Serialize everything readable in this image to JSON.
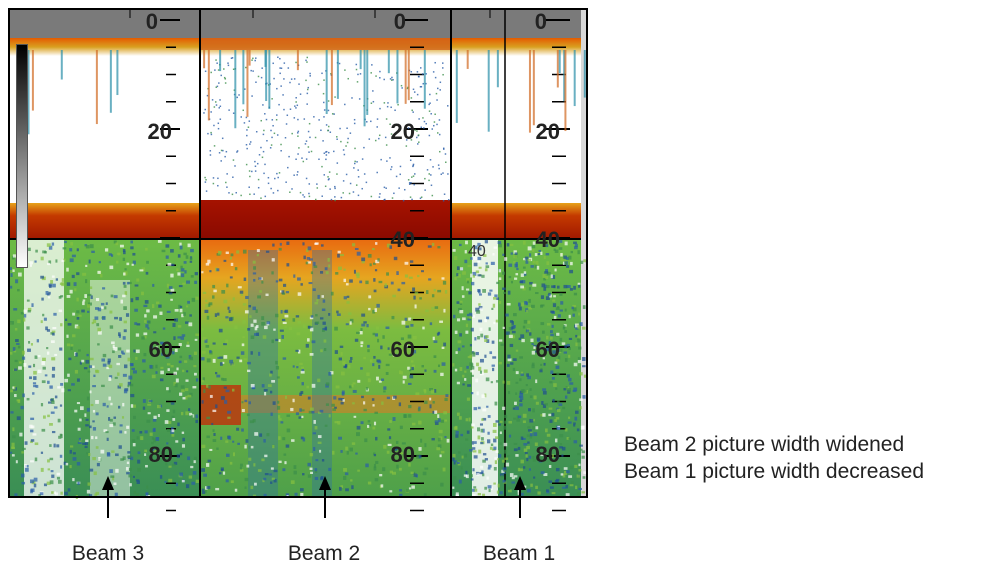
{
  "depth_scale": {
    "ticks": [
      "0",
      "20",
      "40",
      "60",
      "80"
    ],
    "floating_marker": "40"
  },
  "beams": {
    "beam3_label": "Beam 3",
    "beam2_label": "Beam 2",
    "beam1_label": "Beam 1"
  },
  "caption": {
    "line1": "Beam 2 picture width widened",
    "line2": "Beam 1 picture width decreased"
  },
  "colors": {
    "surface_band": "#7a7a7a",
    "seabed": "#b01e00",
    "water_column": "#ffffff",
    "sub_bottom_green": "#4aa84a",
    "sub_bottom_blue": "#2a5ea8",
    "frame": "#000000"
  }
}
